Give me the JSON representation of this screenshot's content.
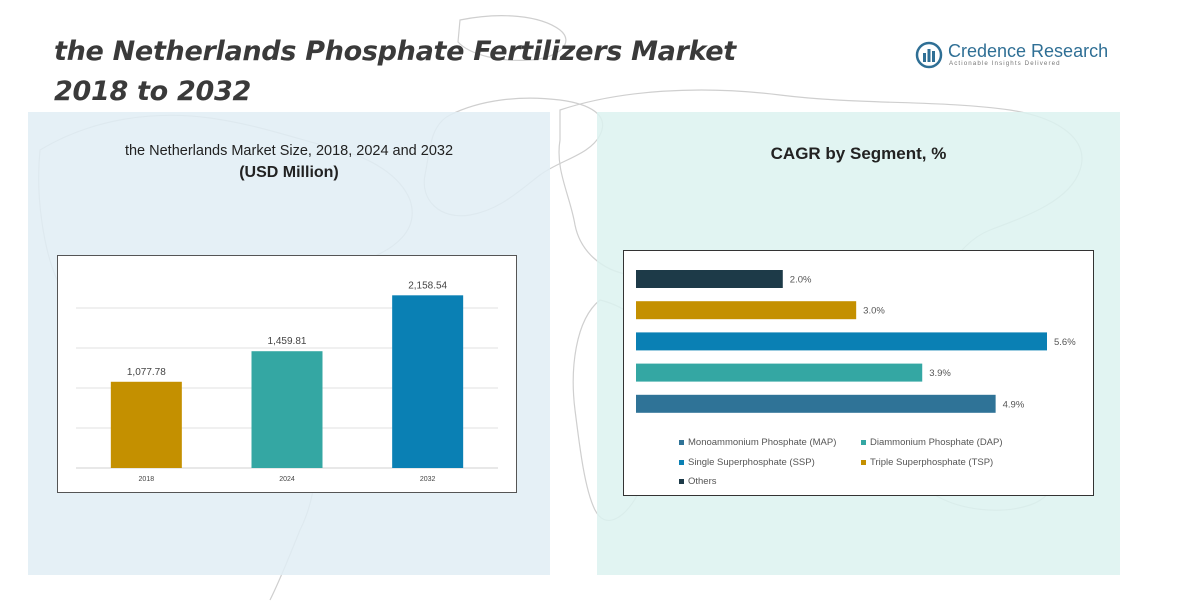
{
  "title_line1": "the Netherlands Phosphate Fertilizers Market",
  "title_line2": "2018 to 2032",
  "logo": {
    "name": "Credence Research",
    "tagline": "Actionable Insights Delivered",
    "icon": "bar-chart-logo-icon",
    "color": "#2f6f95"
  },
  "left_panel": {
    "subtitle": "the Netherlands Market Size, 2018, 2024 and 2032",
    "unit": "(USD Million)"
  },
  "right_panel": {
    "title": "CAGR by Segment, %"
  },
  "chart_data": [
    {
      "type": "bar",
      "title": "the Netherlands Market Size, 2018, 2024 and 2032",
      "ylabel": "(USD Million)",
      "categories": [
        "2018",
        "2024",
        "2032"
      ],
      "values": [
        1077.78,
        1459.81,
        2158.54
      ],
      "value_labels": [
        "1,077.78",
        "1,459.81",
        "2,158.54"
      ],
      "colors": [
        "#c49000",
        "#34a7a3",
        "#0a80b4"
      ],
      "ylim": [
        0,
        2500
      ],
      "grid": true
    },
    {
      "type": "bar",
      "orientation": "horizontal",
      "title": "CAGR by Segment, %",
      "categories": [
        "Others",
        "Triple Superphosphate (TSP)",
        "Single Superphosphate (SSP)",
        "Diammonium Phosphate (DAP)",
        "Monoammonium Phosphate (MAP)"
      ],
      "values": [
        2.0,
        3.0,
        5.6,
        3.9,
        4.9
      ],
      "value_labels": [
        "2.0%",
        "3.0%",
        "5.6%",
        "3.9%",
        "4.9%"
      ],
      "colors": [
        "#1d3a48",
        "#c49000",
        "#0a80b4",
        "#34a7a3",
        "#2f7397"
      ],
      "xlim": [
        0,
        5.6
      ],
      "legend": {
        "position": "bottom",
        "entries": [
          {
            "label": "Monoammonium Phosphate (MAP)",
            "color": "#2f7397"
          },
          {
            "label": "Diammonium Phosphate (DAP)",
            "color": "#34a7a3"
          },
          {
            "label": "Single Superphosphate (SSP)",
            "color": "#0a80b4"
          },
          {
            "label": "Triple Superphosphate (TSP)",
            "color": "#c49000"
          },
          {
            "label": "Others",
            "color": "#1d3a48"
          }
        ]
      }
    }
  ]
}
